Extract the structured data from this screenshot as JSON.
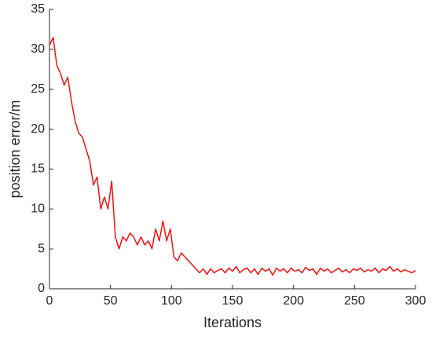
{
  "chart_data": {
    "type": "line",
    "xlabel": "Iterations",
    "ylabel": "position error/m",
    "x": [
      0,
      3,
      6,
      9,
      12,
      15,
      18,
      21,
      24,
      27,
      30,
      33,
      36,
      39,
      42,
      45,
      48,
      51,
      54,
      57,
      60,
      63,
      66,
      69,
      72,
      75,
      78,
      81,
      84,
      87,
      90,
      93,
      96,
      99,
      102,
      105,
      108,
      111,
      114,
      117,
      120,
      123,
      126,
      129,
      132,
      135,
      138,
      141,
      144,
      147,
      150,
      153,
      156,
      159,
      162,
      165,
      168,
      171,
      174,
      177,
      180,
      183,
      186,
      189,
      192,
      195,
      198,
      201,
      204,
      207,
      210,
      213,
      216,
      219,
      222,
      225,
      228,
      231,
      234,
      237,
      240,
      243,
      246,
      249,
      252,
      255,
      258,
      261,
      264,
      267,
      270,
      273,
      276,
      279,
      282,
      285,
      288,
      291,
      294,
      297,
      300
    ],
    "series": [
      {
        "color": "#ff0000",
        "values": [
          30.5,
          31.5,
          28,
          27,
          25.5,
          26.5,
          23.5,
          21,
          19.5,
          19,
          17.5,
          16,
          13,
          14,
          10,
          11.5,
          10,
          13.5,
          6.5,
          5,
          6.5,
          6,
          7,
          6.5,
          5.5,
          6.5,
          5.5,
          6,
          5,
          7.5,
          6,
          8.5,
          6,
          7.5,
          4,
          3.5,
          4.5,
          4,
          3.5,
          3,
          2.5,
          2,
          2.5,
          1.8,
          2.5,
          2,
          2.3,
          2.5,
          2,
          2.6,
          2.2,
          2.8,
          2,
          2.4,
          2.6,
          2,
          2.5,
          1.8,
          2.6,
          2.2,
          2.5,
          1.7,
          2.6,
          2.2,
          2.5,
          2,
          2.6,
          2.2,
          2.4,
          2,
          2.7,
          2.3,
          2.5,
          1.8,
          2.6,
          2.2,
          2.5,
          2,
          2.3,
          2.6,
          2.1,
          2.4,
          2,
          2.5,
          2.3,
          2.6,
          2.1,
          2.4,
          2.2,
          2.6,
          2,
          2.5,
          2.3,
          2.8,
          2.2,
          2.5,
          2.1,
          2.4,
          2.2,
          2,
          2.3
        ]
      }
    ],
    "xlim": [
      0,
      300
    ],
    "xticks": [
      0,
      50,
      100,
      150,
      200,
      250,
      300
    ],
    "ylim": [
      0,
      35
    ],
    "yticks": [
      0,
      5,
      10,
      15,
      20,
      25,
      30,
      35
    ],
    "grid": false
  }
}
